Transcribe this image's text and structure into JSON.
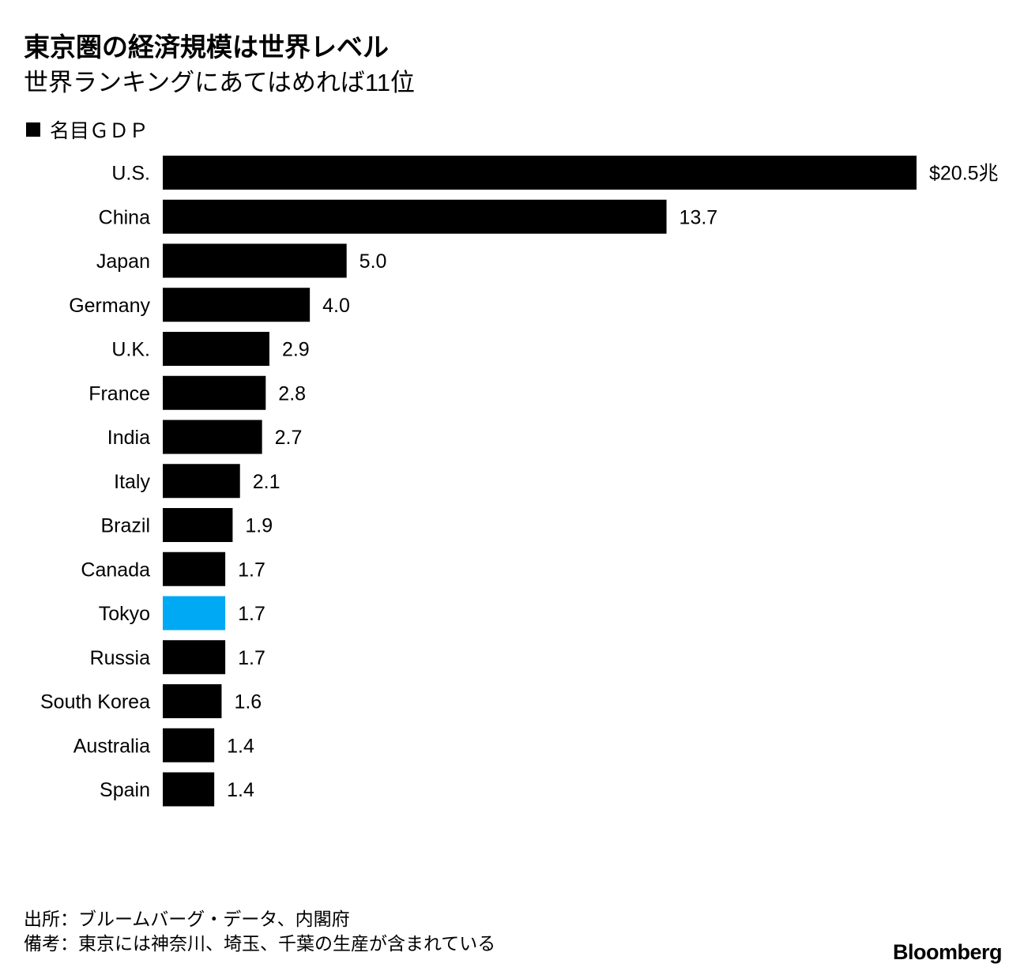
{
  "title": "東京圏の経済規模は世界レベル",
  "subtitle": "世界ランキングにあてはめれば11位",
  "legend": {
    "label": "名目ＧＤＰ",
    "color": "#000000"
  },
  "colors": {
    "bar": "#000000",
    "highlight": "#00a9f4"
  },
  "chart_data": {
    "type": "bar",
    "orientation": "horizontal",
    "title": "東京圏の経済規模は世界レベル",
    "subtitle": "世界ランキングにあてはめれば11位",
    "series": [
      {
        "name": "名目ＧＤＰ"
      }
    ],
    "categories": [
      "U.S.",
      "China",
      "Japan",
      "Germany",
      "U.K.",
      "France",
      "India",
      "Italy",
      "Brazil",
      "Canada",
      "Tokyo",
      "Russia",
      "South Korea",
      "Australia",
      "Spain"
    ],
    "values": [
      20.5,
      13.7,
      5.0,
      4.0,
      2.9,
      2.8,
      2.7,
      2.1,
      1.9,
      1.7,
      1.7,
      1.7,
      1.6,
      1.4,
      1.4
    ],
    "value_labels": [
      "$20.5兆",
      "13.7",
      "5.0",
      "4.0",
      "2.9",
      "2.8",
      "2.7",
      "2.1",
      "1.9",
      "1.7",
      "1.7",
      "1.7",
      "1.6",
      "1.4",
      "1.4"
    ],
    "highlight_category": "Tokyo",
    "xlim": [
      0,
      20.5
    ],
    "grid": false,
    "legend_position": "top-left"
  },
  "footer": {
    "source": "出所：ブルームバーグ・データ、内閣府",
    "note": "備考：東京には神奈川、埼玉、千葉の生産が含まれている"
  },
  "brand": "Bloomberg"
}
